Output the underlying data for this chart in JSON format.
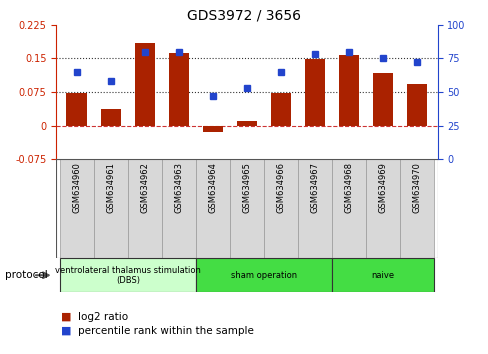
{
  "title": "GDS3972 / 3656",
  "samples": [
    "GSM634960",
    "GSM634961",
    "GSM634962",
    "GSM634963",
    "GSM634964",
    "GSM634965",
    "GSM634966",
    "GSM634967",
    "GSM634968",
    "GSM634969",
    "GSM634970"
  ],
  "log2_ratio": [
    0.072,
    0.038,
    0.185,
    0.163,
    -0.015,
    0.01,
    0.072,
    0.148,
    0.158,
    0.118,
    0.092
  ],
  "percentile_rank": [
    65,
    58,
    80,
    80,
    47,
    53,
    65,
    78,
    80,
    75,
    72
  ],
  "bar_color": "#aa2200",
  "dot_color": "#2244cc",
  "ylim_left": [
    -0.075,
    0.225
  ],
  "ylim_right": [
    0,
    100
  ],
  "yticks_left": [
    -0.075,
    0,
    0.075,
    0.15,
    0.225
  ],
  "yticks_right": [
    0,
    25,
    50,
    75,
    100
  ],
  "hlines": [
    0.075,
    0.15
  ],
  "zero_line_color": "#cc3333",
  "hline_color": "#333333",
  "protocol_groups": [
    {
      "label": "ventrolateral thalamus stimulation\n(DBS)",
      "start": 0,
      "end": 3,
      "color": "#ccffcc"
    },
    {
      "label": "sham operation",
      "start": 4,
      "end": 7,
      "color": "#44dd44"
    },
    {
      "label": "naive",
      "start": 8,
      "end": 10,
      "color": "#44dd44"
    }
  ],
  "legend_items": [
    {
      "color": "#aa2200",
      "label": "log2 ratio"
    },
    {
      "color": "#2244cc",
      "label": "percentile rank within the sample"
    }
  ],
  "protocol_label": "protocol",
  "left_axis_color": "#cc2200",
  "right_axis_color": "#2244cc",
  "plot_border_color": "#000000",
  "xlim": [
    -0.6,
    10.6
  ]
}
